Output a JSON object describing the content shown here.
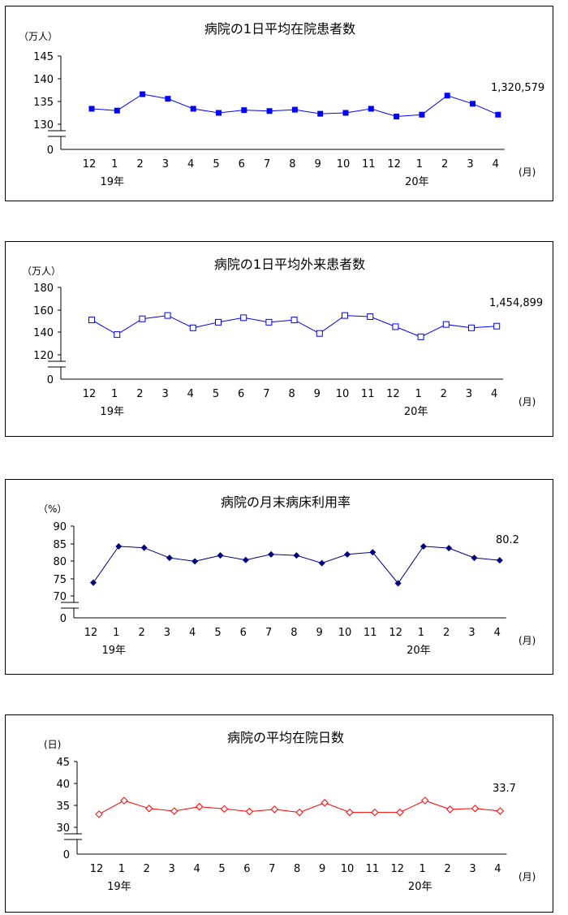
{
  "chart_data": [
    {
      "type": "line",
      "title": "病院の1日平均在院患者数",
      "unit_label": "（万人）",
      "x_unit_label": "(月)",
      "categories": [
        "12",
        "1",
        "2",
        "3",
        "4",
        "5",
        "6",
        "7",
        "8",
        "9",
        "10",
        "11",
        "12",
        "1",
        "2",
        "3",
        "4"
      ],
      "year_labels": [
        {
          "category_index": 1,
          "text": "19年"
        },
        {
          "category_index": 13,
          "text": "20年"
        }
      ],
      "y_ticks": [
        "145",
        "140",
        "135",
        "130"
      ],
      "y_zero_label": "0",
      "axis_break": true,
      "ylim": [
        130,
        145
      ],
      "series": [
        {
          "values": [
            133.4,
            133.0,
            136.6,
            135.6,
            133.4,
            132.5,
            133.1,
            132.9,
            133.2,
            132.3,
            132.5,
            133.4,
            131.7,
            132.1,
            136.3,
            134.5,
            132.1
          ]
        }
      ],
      "last_value_label": "1,320,579",
      "marker": "square-filled",
      "color": "#0000ff"
    },
    {
      "type": "line",
      "title": "病院の1日平均外来患者数",
      "unit_label": "（万人）",
      "x_unit_label": "(月)",
      "categories": [
        "12",
        "1",
        "2",
        "3",
        "4",
        "5",
        "6",
        "7",
        "8",
        "9",
        "10",
        "11",
        "12",
        "1",
        "2",
        "3",
        "4"
      ],
      "year_labels": [
        {
          "category_index": 1,
          "text": "19年"
        },
        {
          "category_index": 13,
          "text": "20年"
        }
      ],
      "y_ticks": [
        "180",
        "160",
        "140",
        "120"
      ],
      "y_zero_label": "0",
      "axis_break": true,
      "ylim": [
        120,
        180
      ],
      "series": [
        {
          "values": [
            151,
            138,
            152,
            155,
            144,
            149,
            153,
            149,
            151,
            139,
            155,
            154,
            145,
            136,
            147,
            144,
            145.5
          ]
        }
      ],
      "last_value_label": "1,454,899",
      "marker": "square-open",
      "color": "#0000ff"
    },
    {
      "type": "line",
      "title": "病院の月末病床利用率",
      "unit_label": "（%）",
      "x_unit_label": "(月)",
      "categories": [
        "12",
        "1",
        "2",
        "3",
        "4",
        "5",
        "6",
        "7",
        "8",
        "9",
        "10",
        "11",
        "12",
        "1",
        "2",
        "3",
        "4"
      ],
      "year_labels": [
        {
          "category_index": 1,
          "text": "19年"
        },
        {
          "category_index": 13,
          "text": "20年"
        }
      ],
      "y_ticks": [
        "90",
        "85",
        "80",
        "75",
        "70"
      ],
      "y_zero_label": "0",
      "axis_break": true,
      "ylim": [
        70,
        90
      ],
      "series": [
        {
          "values": [
            73.8,
            84.2,
            83.8,
            80.9,
            79.9,
            81.6,
            80.3,
            81.9,
            81.6,
            79.4,
            81.9,
            82.5,
            73.6,
            84.2,
            83.7,
            80.9,
            80.2
          ]
        }
      ],
      "last_value_label": "80.2",
      "marker": "diamond-filled",
      "color": "#000080"
    },
    {
      "type": "line",
      "title": "病院の平均在院日数",
      "unit_label": "(日)",
      "x_unit_label": "(月)",
      "categories": [
        "12",
        "1",
        "2",
        "3",
        "4",
        "5",
        "6",
        "7",
        "8",
        "9",
        "10",
        "11",
        "12",
        "1",
        "2",
        "3",
        "4"
      ],
      "year_labels": [
        {
          "category_index": 1,
          "text": "19年"
        },
        {
          "category_index": 13,
          "text": "20年"
        }
      ],
      "y_ticks": [
        "45",
        "40",
        "35",
        "30"
      ],
      "y_zero_label": "0",
      "axis_break": true,
      "ylim": [
        30,
        45
      ],
      "series": [
        {
          "values": [
            33.0,
            36.1,
            34.3,
            33.7,
            34.7,
            34.2,
            33.6,
            34.1,
            33.4,
            35.6,
            33.4,
            33.4,
            33.4,
            36.1,
            34.1,
            34.3,
            33.7
          ]
        }
      ],
      "last_value_label": "33.7",
      "marker": "diamond-open",
      "color": "#ff0000"
    }
  ]
}
